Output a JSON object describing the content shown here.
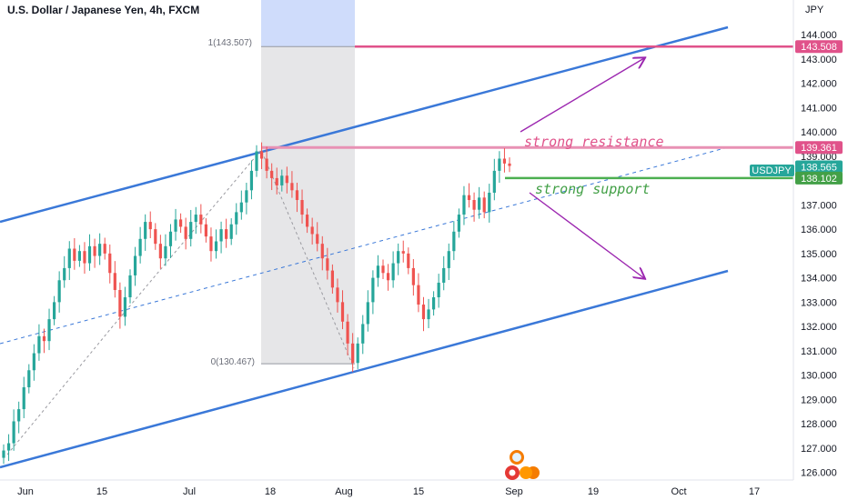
{
  "chart_data": {
    "type": "candlestick",
    "title": "U.S. Dollar / Japanese Yen, 4h, FXCM",
    "currency_label": "JPY",
    "symbol": "USDJPY",
    "y_ticks": [
      "144.000",
      "143.000",
      "142.000",
      "141.000",
      "140.000",
      "139.000",
      "138.000",
      "137.000",
      "136.000",
      "135.000",
      "134.000",
      "133.000",
      "132.000",
      "131.000",
      "130.000",
      "129.000",
      "128.000",
      "127.000",
      "126.000"
    ],
    "x_ticks": [
      "Jun",
      "15",
      "Jul",
      "18",
      "Aug",
      "15",
      "Sep",
      "19",
      "Oct",
      "17"
    ],
    "price_tags": [
      {
        "label": "143.508",
        "color": "#e0528a"
      },
      {
        "label": "139.361",
        "color": "#e0528a"
      },
      {
        "label": "138.565",
        "color": "#26a69a",
        "name": "USDJPY"
      },
      {
        "label": "138.102",
        "color": "#43a047"
      }
    ],
    "fib_labels": {
      "top": "1(143.507)",
      "bottom": "0(130.467)"
    },
    "annotations": [
      {
        "text": "strong resistance",
        "color": "#e0528a"
      },
      {
        "text": "strong support",
        "color": "#43a047"
      }
    ],
    "levels": {
      "resistance_high": 143.508,
      "resistance": 139.361,
      "support": 138.102,
      "fib_high": 143.507,
      "fib_low": 130.467,
      "current": 138.565
    },
    "series": [
      {
        "name": "USDJPY",
        "values": [
          126.9,
          127.2,
          128.1,
          128.6,
          129.5,
          130.2,
          130.9,
          131.6,
          131.4,
          132.3,
          133.0,
          133.9,
          134.4,
          135.2,
          134.7,
          135.1,
          134.6,
          135.3,
          134.9,
          135.4,
          135.0,
          134.2,
          133.5,
          132.4,
          133.2,
          134.1,
          134.9,
          135.6,
          136.3,
          136.0,
          135.4,
          134.8,
          135.3,
          135.9,
          136.4,
          136.1,
          135.6,
          136.3,
          136.6,
          136.2,
          135.7,
          135.1,
          135.5,
          136.0,
          135.6,
          136.2,
          136.7,
          137.1,
          137.6,
          138.4,
          139.2,
          138.9,
          138.4,
          138.1,
          137.8,
          138.2,
          137.9,
          137.6,
          137.2,
          136.6,
          136.1,
          135.8,
          135.4,
          134.8,
          134.3,
          133.6,
          133.0,
          132.2,
          131.3,
          130.5,
          131.3,
          132.1,
          133.0,
          134.0,
          134.5,
          134.2,
          133.9,
          134.6,
          135.1,
          135.0,
          134.4,
          133.7,
          132.9,
          132.3,
          132.7,
          133.2,
          133.8,
          134.4,
          135.1,
          135.9,
          136.6,
          137.4,
          137.2,
          136.8,
          137.3,
          136.7,
          137.5,
          138.4,
          138.9,
          138.7,
          138.6
        ]
      }
    ],
    "xlabel": "",
    "ylabel": "",
    "ylim": [
      125.8,
      144.9
    ],
    "grid": true
  }
}
